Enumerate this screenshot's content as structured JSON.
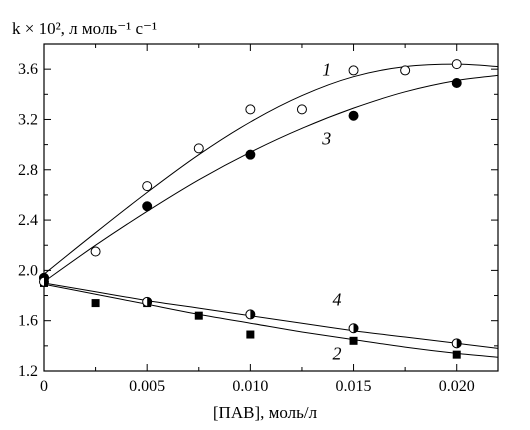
{
  "chart_data": {
    "type": "scatter",
    "title": "",
    "ylabel": "k × 10², л моль⁻¹ с⁻¹",
    "xlabel": "[ПАВ], моль/л",
    "xlim": [
      0,
      0.022
    ],
    "ylim": [
      1.2,
      3.8
    ],
    "x_ticks": [
      "0",
      "0.005",
      "0.010",
      "0.015",
      "0.020"
    ],
    "y_ticks": [
      "1.2",
      "1.6",
      "2.0",
      "2.4",
      "2.8",
      "3.2",
      "3.6"
    ],
    "grid": false,
    "series": [
      {
        "name": "1",
        "marker": "open-circle",
        "points": [
          [
            0,
            1.94
          ],
          [
            0.0025,
            2.15
          ],
          [
            0.005,
            2.67
          ],
          [
            0.0075,
            2.97
          ],
          [
            0.01,
            3.28
          ],
          [
            0.0125,
            3.28
          ],
          [
            0.015,
            3.59
          ],
          [
            0.0175,
            3.59
          ],
          [
            0.02,
            3.64
          ]
        ],
        "fit": [
          [
            0,
            1.97
          ],
          [
            0.0025,
            2.3
          ],
          [
            0.005,
            2.62
          ],
          [
            0.0075,
            2.92
          ],
          [
            0.01,
            3.18
          ],
          [
            0.0125,
            3.39
          ],
          [
            0.015,
            3.54
          ],
          [
            0.0175,
            3.62
          ],
          [
            0.02,
            3.64
          ],
          [
            0.022,
            3.62
          ]
        ]
      },
      {
        "name": "2",
        "marker": "filled-square",
        "points": [
          [
            0,
            1.9
          ],
          [
            0.0025,
            1.74
          ],
          [
            0.005,
            1.74
          ],
          [
            0.0075,
            1.64
          ],
          [
            0.01,
            1.49
          ],
          [
            0.015,
            1.44
          ],
          [
            0.02,
            1.33
          ]
        ],
        "fit": [
          [
            0,
            1.89
          ],
          [
            0.0025,
            1.81
          ],
          [
            0.005,
            1.73
          ],
          [
            0.0075,
            1.65
          ],
          [
            0.01,
            1.58
          ],
          [
            0.0125,
            1.51
          ],
          [
            0.015,
            1.45
          ],
          [
            0.0175,
            1.39
          ],
          [
            0.02,
            1.34
          ],
          [
            0.022,
            1.31
          ]
        ]
      },
      {
        "name": "3",
        "marker": "filled-circle",
        "points": [
          [
            0,
            1.94
          ],
          [
            0.005,
            2.51
          ],
          [
            0.01,
            2.92
          ],
          [
            0.015,
            3.23
          ],
          [
            0.02,
            3.49
          ]
        ],
        "fit": [
          [
            0,
            1.91
          ],
          [
            0.0025,
            2.2
          ],
          [
            0.005,
            2.47
          ],
          [
            0.0075,
            2.72
          ],
          [
            0.01,
            2.94
          ],
          [
            0.0125,
            3.13
          ],
          [
            0.015,
            3.29
          ],
          [
            0.0175,
            3.42
          ],
          [
            0.02,
            3.51
          ],
          [
            0.022,
            3.55
          ]
        ]
      },
      {
        "name": "4",
        "marker": "half-filled-circle",
        "points": [
          [
            0,
            1.91
          ],
          [
            0.005,
            1.75
          ],
          [
            0.01,
            1.65
          ],
          [
            0.015,
            1.54
          ],
          [
            0.02,
            1.42
          ]
        ],
        "fit": [
          [
            0,
            1.9
          ],
          [
            0.0025,
            1.83
          ],
          [
            0.005,
            1.76
          ],
          [
            0.0075,
            1.7
          ],
          [
            0.01,
            1.64
          ],
          [
            0.0125,
            1.58
          ],
          [
            0.015,
            1.52
          ],
          [
            0.0175,
            1.47
          ],
          [
            0.02,
            1.42
          ],
          [
            0.022,
            1.38
          ]
        ]
      }
    ],
    "curve_labels": [
      {
        "text": "1",
        "x": 0.0137,
        "y": 3.55
      },
      {
        "text": "3",
        "x": 0.0137,
        "y": 3.0
      },
      {
        "text": "4",
        "x": 0.0142,
        "y": 1.72
      },
      {
        "text": "2",
        "x": 0.0142,
        "y": 1.29
      }
    ]
  }
}
